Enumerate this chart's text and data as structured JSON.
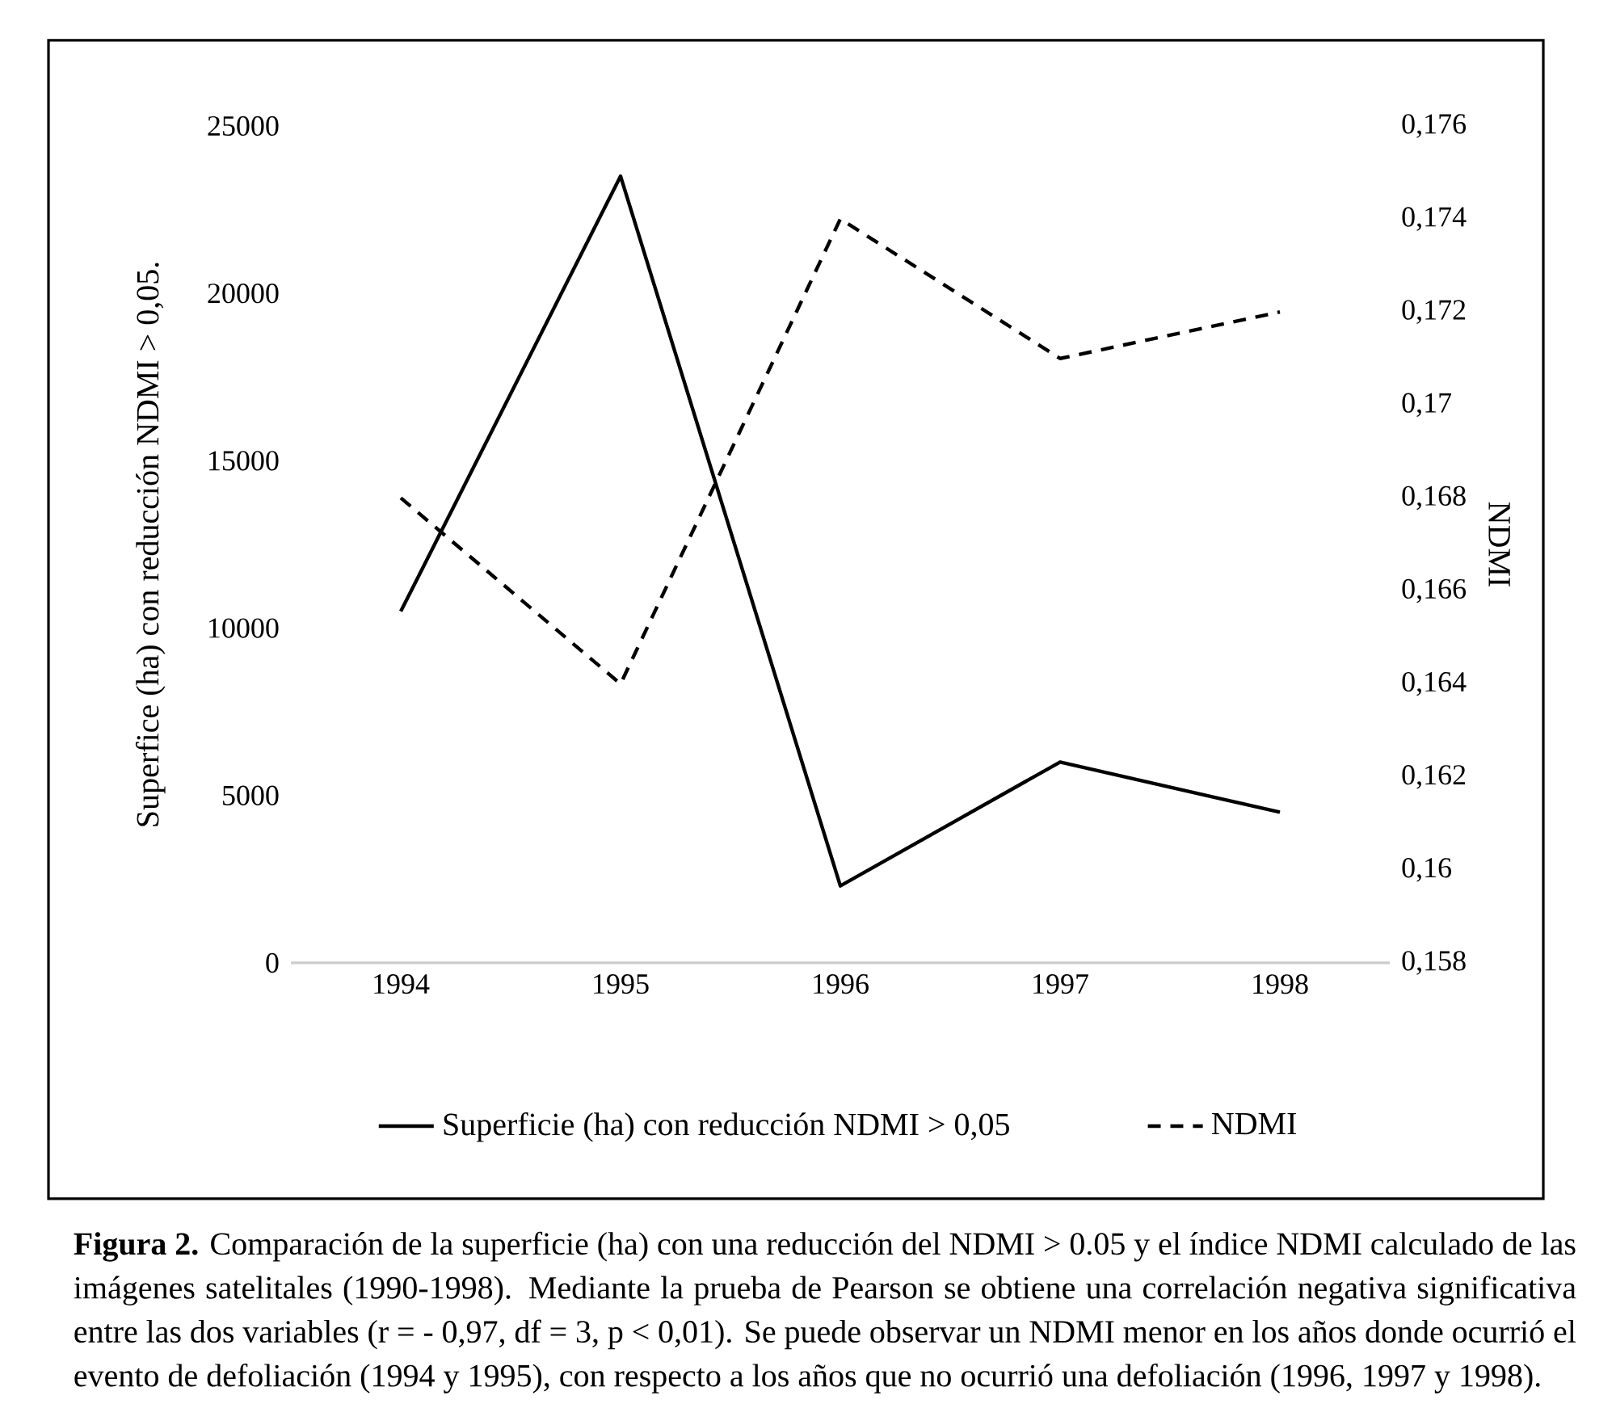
{
  "chart_data": {
    "type": "line",
    "categories": [
      "1994",
      "1995",
      "1996",
      "1997",
      "1998"
    ],
    "series": [
      {
        "name": "Superficie (ha) con reducción NDMI > 0,05",
        "color": "#000000",
        "line_style": "solid",
        "values": [
          10500,
          23500,
          2300,
          6000,
          4500
        ]
      },
      {
        "name": "NDMI",
        "color": "#000000",
        "line_style": "dashed",
        "axis": "y2",
        "values": [
          0.168,
          0.164,
          0.174,
          0.171,
          0.172
        ]
      }
    ],
    "ylabel": "Superfice (ha) con reducción NDMI > 0,05.",
    "y2label": "NDMI",
    "ylim": [
      0,
      25000
    ],
    "yticks": [
      0,
      5000,
      10000,
      15000,
      20000,
      25000
    ],
    "y2lim": [
      0.158,
      0.176
    ],
    "y2ticks": [
      {
        "value": 0.158,
        "label": "0,158"
      },
      {
        "value": 0.16,
        "label": "0,16"
      },
      {
        "value": 0.162,
        "label": "0,162"
      },
      {
        "value": 0.164,
        "label": "0,164"
      },
      {
        "value": 0.166,
        "label": "0,166"
      },
      {
        "value": 0.168,
        "label": "0,168"
      },
      {
        "value": 0.17,
        "label": "0,17"
      },
      {
        "value": 0.172,
        "label": "0,172"
      },
      {
        "value": 0.174,
        "label": "0,174"
      },
      {
        "value": 0.176,
        "label": "0,176"
      }
    ],
    "grid": false,
    "legend": "bottom",
    "marker": "none",
    "annotations": [
      "**Figura 2.** Comparación de la superficie (ha) con una reducción del NDMI > 0.05 y el índice NDMI calculado de las imágenes satelitales (1990-1998). Mediante la prueba de Pearson se obtiene una correlación negativa significativa entre las dos variables (r = - 0,97, df = 3, p < 0,01). Se puede observar un NDMI menor en los años donde ocurrió el evento de defoliación (1994 y 1995), con respecto a los años que no ocurrió una defoliación (1996, 1997 y 1998)."
    ]
  }
}
